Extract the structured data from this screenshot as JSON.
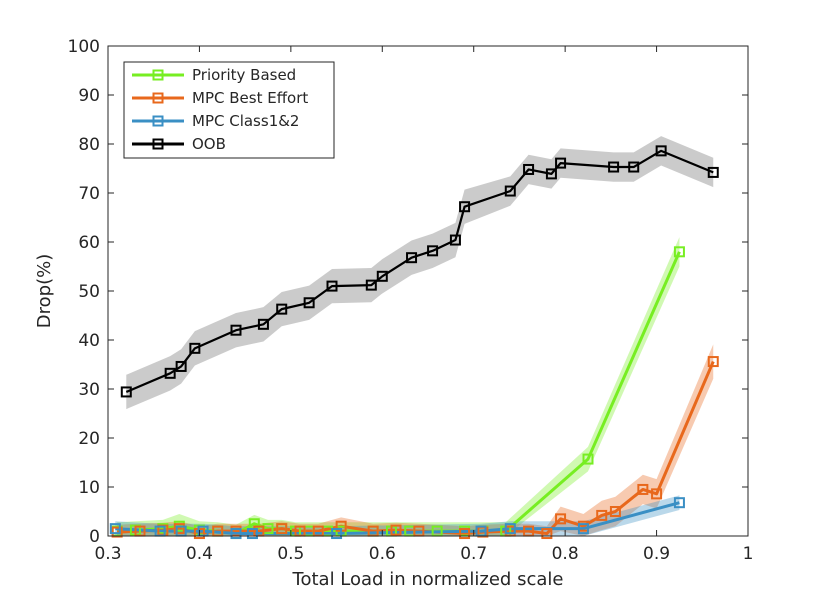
{
  "chart_data": {
    "type": "line",
    "title": "",
    "xlabel": "Total Load in normalized scale",
    "ylabel": "Drop(%)",
    "xlim": [
      0.3,
      1.0
    ],
    "ylim": [
      0,
      100
    ],
    "xticks": [
      0.3,
      0.4,
      0.5,
      0.6,
      0.7,
      0.8,
      0.9,
      1.0
    ],
    "xtick_labels": [
      "0.3",
      "0.4",
      "0.5",
      "0.6",
      "0.7",
      "0.8",
      "0.9",
      "1"
    ],
    "yticks": [
      0,
      10,
      20,
      30,
      40,
      50,
      60,
      70,
      80,
      90,
      100
    ],
    "ytick_labels": [
      "0",
      "10",
      "20",
      "30",
      "40",
      "50",
      "60",
      "70",
      "80",
      "90",
      "100"
    ],
    "grid": false,
    "legend_position": "top-left",
    "series": [
      {
        "name": "Priority Based",
        "color": "#77ee22",
        "x": [
          0.31,
          0.33,
          0.36,
          0.378,
          0.4,
          0.42,
          0.44,
          0.46,
          0.475,
          0.49,
          0.505,
          0.52,
          0.54,
          0.555,
          0.59,
          0.61,
          0.63,
          0.66,
          0.69,
          0.71,
          0.735,
          0.825,
          0.925
        ],
        "y": [
          1.0,
          1.2,
          1.5,
          2.0,
          1.2,
          1.0,
          0.5,
          2.5,
          1.5,
          1.5,
          1.0,
          1.0,
          1.0,
          1.0,
          1.0,
          1.0,
          1.0,
          1.0,
          1.0,
          1.0,
          1.0,
          15.7,
          58.0
        ],
        "band": [
          1.8,
          1.8,
          1.8,
          2.5,
          1.8,
          1.8,
          1.8,
          1.8,
          1.8,
          1.8,
          1.8,
          1.8,
          1.8,
          1.8,
          1.8,
          1.8,
          1.8,
          1.8,
          1.8,
          1.8,
          1.8,
          2.5,
          3.0
        ]
      },
      {
        "name": "MPC Best Effort",
        "color": "#e8681c",
        "x": [
          0.31,
          0.335,
          0.36,
          0.378,
          0.4,
          0.42,
          0.44,
          0.465,
          0.49,
          0.51,
          0.53,
          0.555,
          0.59,
          0.615,
          0.64,
          0.69,
          0.71,
          0.74,
          0.76,
          0.78,
          0.795,
          0.82,
          0.84,
          0.855,
          0.885,
          0.9,
          0.962
        ],
        "y": [
          0.8,
          1.0,
          1.2,
          1.5,
          0.5,
          1.0,
          1.0,
          1.0,
          1.5,
          1.0,
          1.0,
          2.0,
          1.0,
          1.2,
          1.0,
          0.5,
          0.8,
          1.0,
          1.0,
          0.5,
          3.5,
          2.0,
          4.2,
          5.0,
          9.5,
          8.6,
          35.6
        ],
        "band": [
          1.5,
          1.5,
          1.5,
          1.5,
          1.5,
          1.5,
          1.5,
          1.5,
          1.5,
          1.5,
          1.5,
          1.8,
          1.5,
          1.5,
          1.5,
          1.5,
          1.5,
          1.5,
          1.5,
          1.5,
          2.5,
          2.5,
          3.0,
          3.0,
          3.0,
          3.0,
          3.5
        ]
      },
      {
        "name": "MPC Class1&2",
        "color": "#3a8fc4",
        "x": [
          0.308,
          0.357,
          0.38,
          0.404,
          0.44,
          0.458,
          0.55,
          0.708,
          0.74,
          0.82,
          0.925
        ],
        "y": [
          1.5,
          1.0,
          1.0,
          1.0,
          0.5,
          0.5,
          0.5,
          1.0,
          1.5,
          1.5,
          6.8
        ],
        "band": [
          1.5,
          1.5,
          1.5,
          1.5,
          1.5,
          1.5,
          1.5,
          1.5,
          1.5,
          1.5,
          1.5
        ]
      },
      {
        "name": "OOB",
        "color": "#000000",
        "x": [
          0.32,
          0.368,
          0.38,
          0.395,
          0.44,
          0.47,
          0.49,
          0.52,
          0.545,
          0.588,
          0.6,
          0.632,
          0.655,
          0.68,
          0.69,
          0.74,
          0.76,
          0.785,
          0.795,
          0.853,
          0.875,
          0.905,
          0.962
        ],
        "y": [
          29.4,
          33.2,
          34.6,
          38.3,
          42.0,
          43.2,
          46.3,
          47.6,
          51.0,
          51.2,
          53.0,
          56.8,
          58.2,
          60.4,
          67.2,
          70.4,
          74.8,
          73.9,
          76.1,
          75.3,
          75.3,
          78.6,
          74.2
        ],
        "band": [
          3.5,
          3.5,
          3.5,
          3.5,
          3.5,
          3.5,
          3.5,
          3.5,
          3.5,
          3.5,
          3.5,
          3.5,
          3.5,
          3.5,
          3.5,
          3.0,
          3.0,
          3.0,
          3.0,
          3.0,
          3.0,
          3.0,
          3.0
        ]
      }
    ]
  }
}
